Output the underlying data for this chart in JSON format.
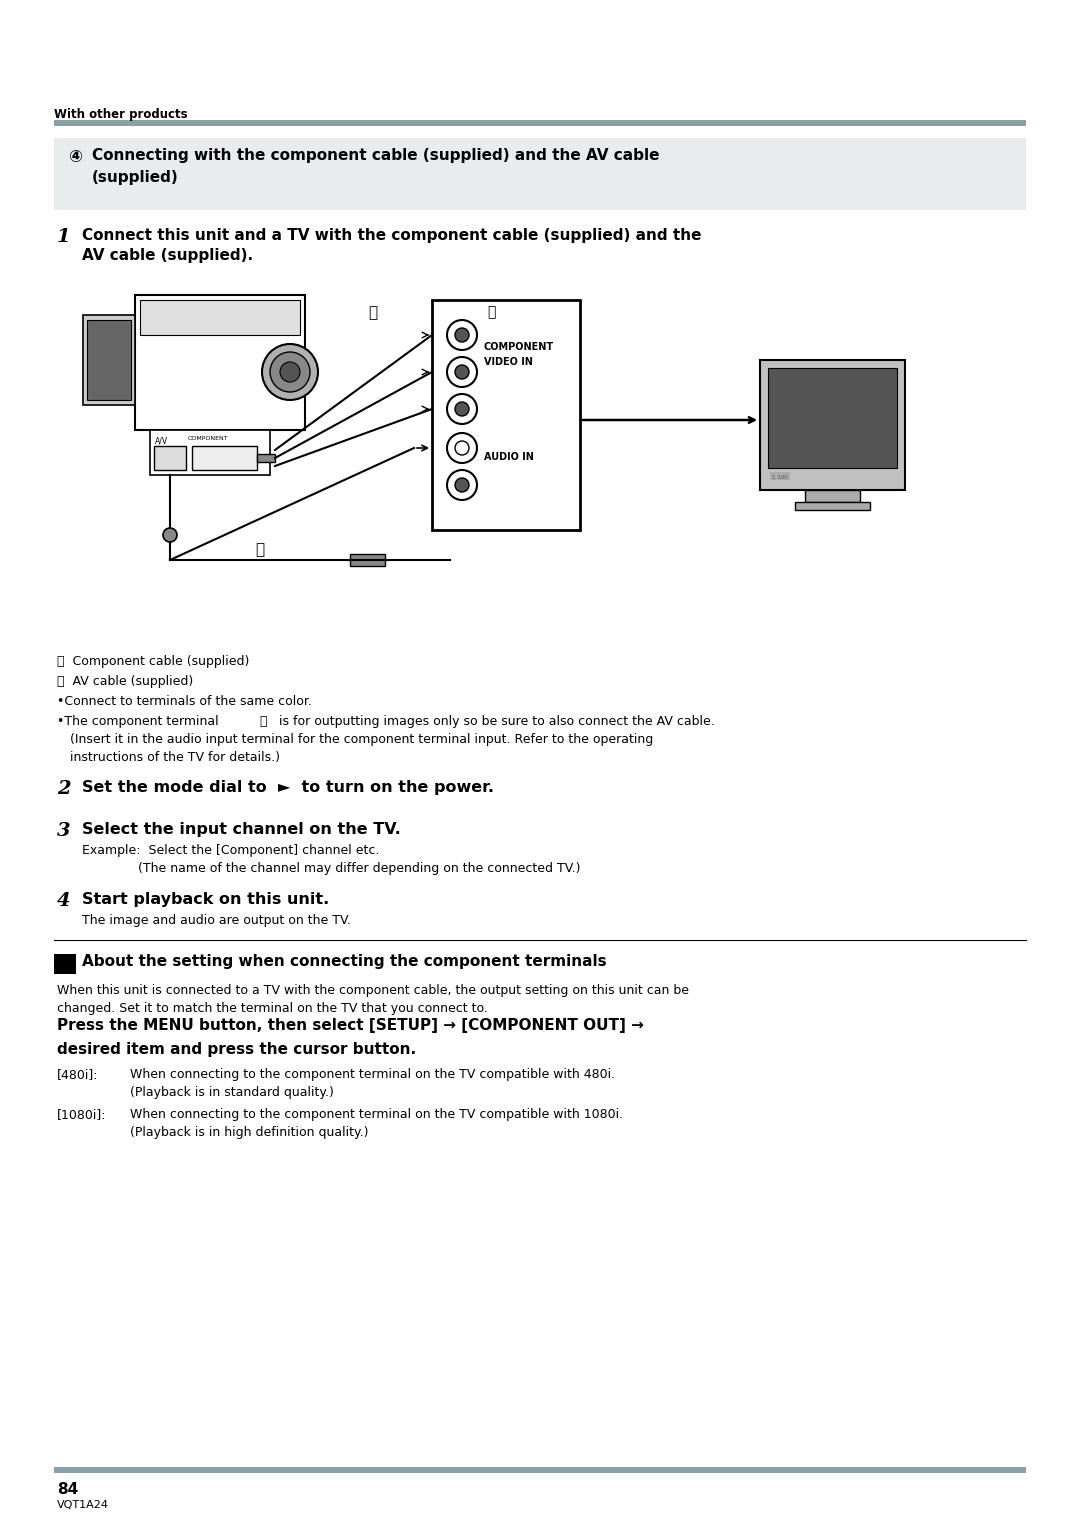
{
  "page_width": 10.8,
  "page_height": 15.26,
  "dpi": 100,
  "bg_color": "#ffffff",
  "top_label": "With other products",
  "header_bar_color": "#8a9fa8",
  "footer_bar_color": "#8a9fa8",
  "section_header_bg": "#e8ecee",
  "page_number": "84",
  "page_code": "VQT1A24"
}
